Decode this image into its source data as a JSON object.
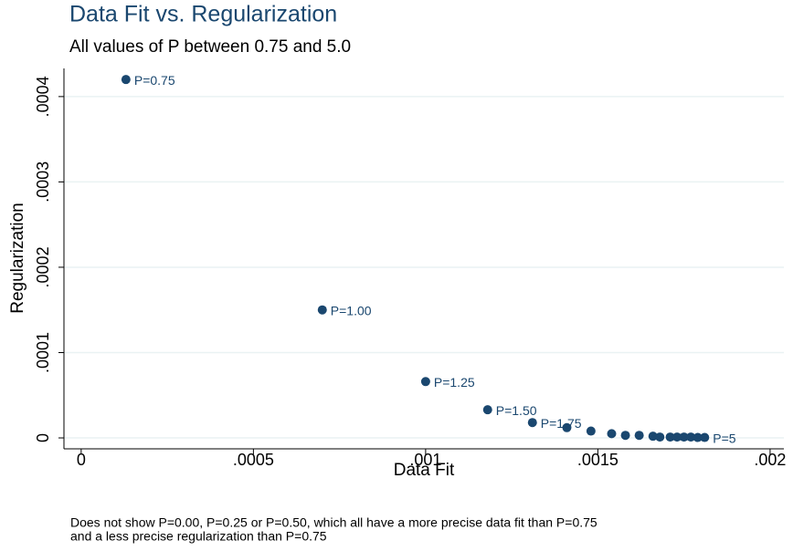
{
  "chart_data": {
    "type": "scatter",
    "title": "Data Fit vs. Regularization",
    "subtitle": "All values of P between 0.75 and 5.0",
    "x_label": "Data Fit",
    "y_label": "Regularization",
    "note": [
      "Does not show P=0.00, P=0.25 or P=0.50, which all have a more precise data fit than P=0.75",
      "and a less precise regularization than P=0.75"
    ],
    "color": "#1a476f",
    "grid": true,
    "x": [
      0.00013,
      0.0007,
      0.001,
      0.00118,
      0.00131,
      0.00141,
      0.00148,
      0.00154,
      0.00158,
      0.00162,
      0.00166,
      0.00168,
      0.00171,
      0.00173,
      0.00175,
      0.00177,
      0.00179,
      0.00181
    ],
    "values": [
      0.00042,
      0.00015,
      6.6e-05,
      3.3e-05,
      1.8e-05,
      1.2e-05,
      8e-06,
      5e-06,
      3e-06,
      3e-06,
      2e-06,
      1e-06,
      1e-06,
      1e-06,
      1e-06,
      1e-06,
      5e-07,
      5e-07
    ],
    "point_labels": [
      "P=0.75",
      "P=1.00",
      "P=1.25",
      "P=1.50",
      "P=1.75",
      null,
      null,
      null,
      null,
      null,
      null,
      null,
      null,
      null,
      null,
      null,
      null,
      "P=5"
    ],
    "xlim": [
      -5e-05,
      0.00204
    ],
    "ylim": [
      -1.28e-05,
      0.000433
    ],
    "xticks": [
      0,
      {
        "value": 0.0005,
        "label": ".0005"
      },
      {
        "value": 0.001,
        "label": ".001"
      },
      {
        "value": 0.0015,
        "label": ".0015"
      },
      {
        "value": 0.002,
        "label": ".002"
      }
    ],
    "yticks": [
      0,
      {
        "value": 0.0001,
        "label": ".0001"
      },
      {
        "value": 0.0002,
        "label": ".0002"
      },
      {
        "value": 0.0003,
        "label": ".0003"
      },
      {
        "value": 0.0004,
        "label": ".0004"
      }
    ]
  }
}
